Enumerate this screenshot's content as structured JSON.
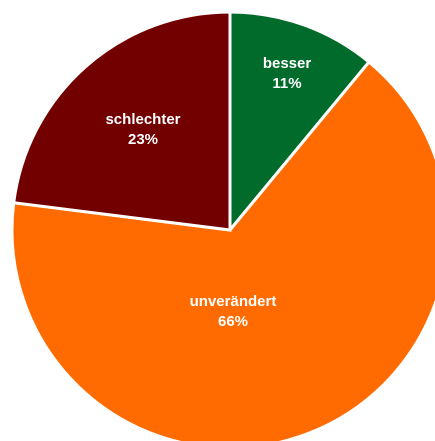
{
  "chart_data": {
    "type": "pie",
    "title": "",
    "start_angle_deg": 0,
    "direction": "clockwise",
    "slices": [
      {
        "label": "besser",
        "value": 11,
        "value_label": "11%",
        "color": "#006b2a"
      },
      {
        "label": "unverändert",
        "value": 66,
        "value_label": "66%",
        "color": "#ff6b00"
      },
      {
        "label": "schlechter",
        "value": 23,
        "value_label": "23%",
        "color": "#730000"
      }
    ],
    "legend": "none",
    "labels_inside": true
  }
}
